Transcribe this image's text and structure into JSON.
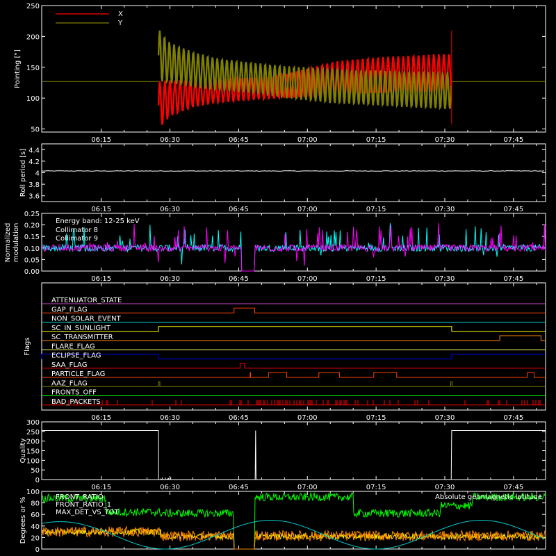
{
  "time_axis": {
    "tick_labels": [
      "06:15",
      "06:30",
      "06:45",
      "07:00",
      "07:15",
      "07:30",
      "07:45"
    ],
    "tick_minutes": [
      375,
      390,
      405,
      420,
      435,
      450,
      465
    ],
    "range_minutes": [
      362,
      472
    ]
  },
  "chart_data": [
    {
      "id": "pointing",
      "type": "line",
      "ylabel": "Pointing [\"]",
      "ylim": [
        45,
        250
      ],
      "yticks": [
        50,
        100,
        150,
        200,
        250
      ],
      "series": [
        {
          "name": "X",
          "color": "#ff0000"
        },
        {
          "name": "Y",
          "color": "#808000"
        }
      ],
      "baseline": 127,
      "active_start": 387.5,
      "active_end": 451.5,
      "x_envelope": {
        "t": [
          387.5,
          390,
          395,
          400,
          405,
          410,
          415,
          420,
          425,
          430,
          435,
          440,
          445,
          451.5
        ],
        "low": [
          50,
          70,
          85,
          92,
          95,
          98,
          100,
          102,
          104,
          106,
          108,
          110,
          110,
          112
        ],
        "high": [
          127,
          129,
          130,
          131,
          132,
          134,
          138,
          148,
          158,
          163,
          166,
          168,
          170,
          172
        ]
      },
      "y_envelope": {
        "t": [
          387.5,
          390,
          395,
          400,
          405,
          410,
          415,
          420,
          425,
          430,
          435,
          440,
          445,
          451.5
        ],
        "low": [
          127,
          124,
          118,
          112,
          110,
          106,
          100,
          96,
          92,
          90,
          88,
          86,
          84,
          82
        ],
        "high": [
          212,
          190,
          175,
          165,
          160,
          156,
          152,
          150,
          148,
          146,
          145,
          144,
          143,
          142
        ]
      }
    },
    {
      "id": "roll",
      "type": "line",
      "ylabel": "Roll period [s]",
      "ylim": [
        3.5,
        4.5
      ],
      "yticks": [
        3.6,
        3.8,
        4.0,
        4.2,
        4.4
      ],
      "value": 4.03,
      "color": "#ffffff"
    },
    {
      "id": "modulation",
      "type": "line",
      "ylabel_lines": [
        "Normalized",
        "modulation"
      ],
      "ylim": [
        0,
        0.25
      ],
      "yticks": [
        0.0,
        0.05,
        0.1,
        0.15,
        0.2,
        0.25
      ],
      "ytick_labels": [
        "0.00",
        "0.05",
        "0.10",
        "0.15",
        "0.20",
        "0.25"
      ],
      "annotation": "Energy band: 12-25 keV",
      "series": [
        {
          "name": "Collimator 8",
          "color": "#00ffff"
        },
        {
          "name": "Collimator 9",
          "color": "#ff00ff"
        }
      ],
      "baseline": 0.1,
      "gap": [
        405.5,
        408.5
      ]
    },
    {
      "id": "flags",
      "type": "step",
      "ylabel": "Flags",
      "flags": [
        {
          "name": "ATTENUATOR_STATE",
          "color": "#cc44cc",
          "on": []
        },
        {
          "name": "SAA_FLAG_GAP",
          "label": "GAP_FLAG",
          "color": "#ff4400",
          "on": [
            [
              404.0,
              408.5
            ]
          ]
        },
        {
          "name": "NON_SOLAR_EVENT",
          "color": "#00dddd",
          "on": []
        },
        {
          "name": "SC_IN_SUNLIGHT",
          "color": "#ffff00",
          "on": [
            [
              387.5,
              451.5
            ]
          ]
        },
        {
          "name": "SC_TRANSMITTER",
          "color": "#ff8800",
          "on": [
            [
              462.0,
              471.0
            ]
          ]
        },
        {
          "name": "FLARE_FLAG",
          "color": "#ffff66",
          "on": []
        },
        {
          "name": "ECLIPSE_FLAG",
          "color": "#0000ff",
          "on": [
            [
              362,
              387.5
            ],
            [
              451.5,
              472
            ]
          ]
        },
        {
          "name": "SAA_FLAG",
          "color": "#ff0000",
          "on": [
            [
              405.3,
              406.3
            ]
          ]
        },
        {
          "name": "PARTICLE_FLAG",
          "color": "#ff4400",
          "on": [
            [
              407.5,
              407.6
            ],
            [
              411.5,
              415.5
            ],
            [
              422.5,
              427.0
            ],
            [
              434.5,
              439.5
            ],
            [
              468.0,
              469.5
            ]
          ]
        },
        {
          "name": "AAZ_FLAG",
          "color": "#808000",
          "on": [
            [
              387.5,
              387.8
            ],
            [
              451.3,
              451.6
            ]
          ]
        },
        {
          "name": "FRONTS_OFF",
          "color": "#00ff00",
          "on": []
        },
        {
          "name": "BAD_PACKETS",
          "color": "#ff0000",
          "on": []
        }
      ]
    },
    {
      "id": "quality",
      "type": "line",
      "ylabel": "Quality",
      "ylim": [
        0,
        300
      ],
      "yticks": [
        0,
        50,
        100,
        150,
        200,
        250,
        300
      ],
      "color": "#ffffff",
      "segments": [
        {
          "t": [
            362,
            387.5
          ],
          "value": 255
        },
        {
          "t": [
            451.5,
            472
          ],
          "value": 255
        }
      ],
      "spike": {
        "t": 408.7,
        "value": 255
      },
      "noise_range": [
        388.0,
        390.5
      ]
    },
    {
      "id": "ratios",
      "type": "line",
      "ylabel": "Degrees or %",
      "ylim": [
        0,
        100
      ],
      "yticks": [
        0,
        20,
        40,
        60,
        80,
        100
      ],
      "series": [
        {
          "name": "FRONT_RATIO",
          "color": "#00ff00"
        },
        {
          "name": "FRONT_RATIO_1",
          "label": "FRONT_RATIO_1",
          "color": "#ffff00"
        },
        {
          "name": "MAX_DET_VS_TOT",
          "color": "#ff8800"
        },
        {
          "name": "Absolute geomagnetic latitude",
          "color": "#00cccc"
        }
      ],
      "gap": [
        404.0,
        408.5
      ]
    }
  ]
}
